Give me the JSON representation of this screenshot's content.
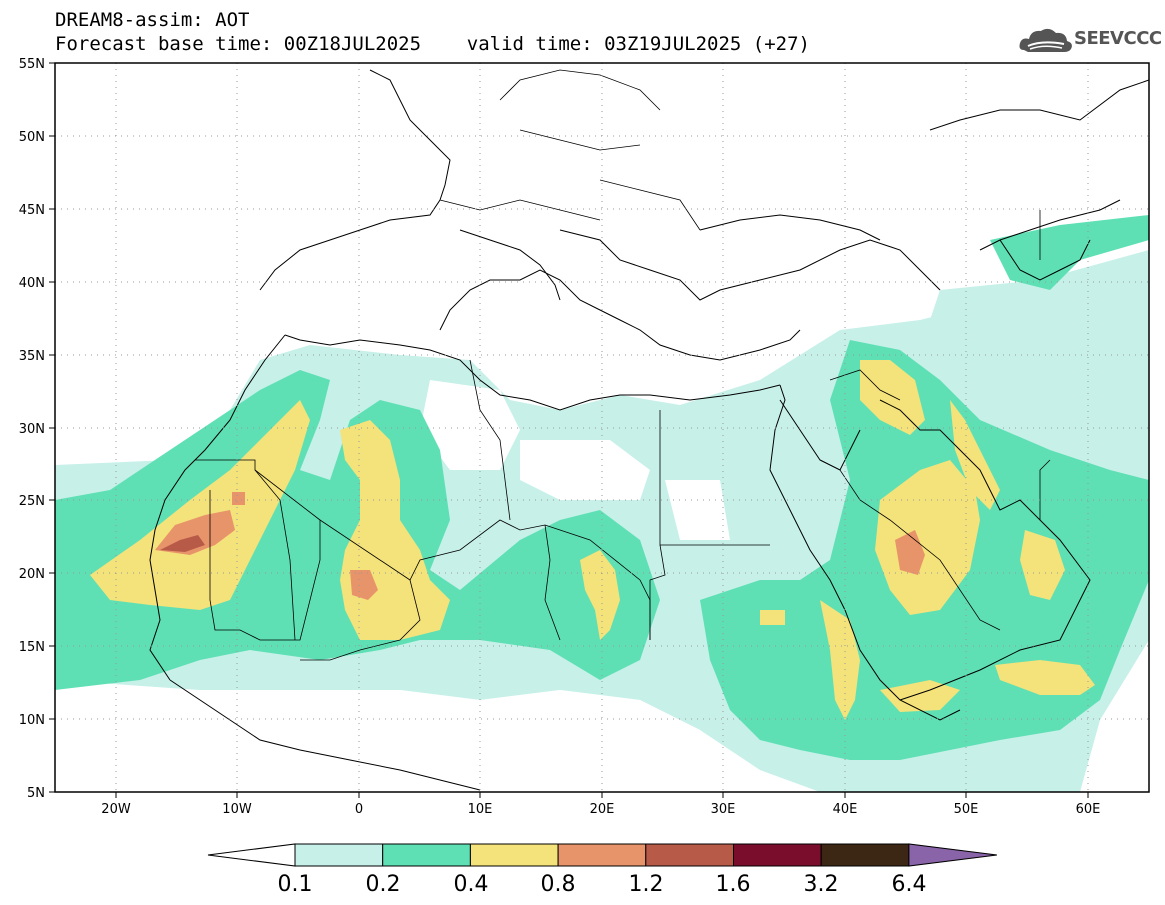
{
  "header": {
    "line1": "DREAM8-assim: AOT",
    "line2": "Forecast base time: 00Z18JUL2025    valid time: 03Z19JUL2025 (+27)"
  },
  "logo": {
    "text": "SEEVCCC",
    "icon": "cloud-icon"
  },
  "map": {
    "projection": "lat-lon",
    "lon_range": [
      -25,
      65
    ],
    "lat_range": [
      5,
      55
    ],
    "lat_ticks": [
      "5N",
      "10N",
      "15N",
      "20N",
      "25N",
      "30N",
      "35N",
      "40N",
      "45N",
      "50N",
      "55N"
    ],
    "lon_ticks": [
      "20W",
      "10W",
      "0",
      "10E",
      "20E",
      "30E",
      "40E",
      "50E",
      "60E"
    ],
    "grid": "dotted"
  },
  "colorbar": {
    "labels": [
      "0.1",
      "0.2",
      "0.4",
      "0.8",
      "1.2",
      "1.6",
      "3.2",
      "6.4"
    ],
    "colors": [
      "#ffffff",
      "#c6f0e8",
      "#5ee0b4",
      "#f4e27a",
      "#e8946a",
      "#b85a48",
      "#7a0c2c",
      "#3c2614",
      "#8a64a8"
    ]
  }
}
